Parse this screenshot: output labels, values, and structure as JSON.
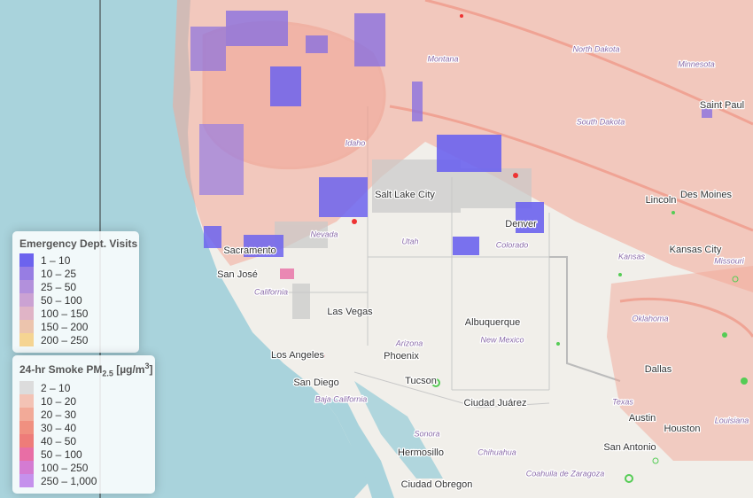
{
  "map": {
    "city_labels": [
      "Saint Paul",
      "Des Moines",
      "Lincoln",
      "Kansas City",
      "Denver",
      "Salt Lake City",
      "Sacramento",
      "San José",
      "Las Vegas",
      "Albuquerque",
      "Phoenix",
      "Los Angeles",
      "San Diego",
      "Tucson",
      "Ciudad Juárez",
      "Dallas",
      "Austin",
      "Houston",
      "Hermosillo",
      "San Antonio",
      "Ciudad Obregon"
    ],
    "region_labels": [
      "Montana",
      "North Dakota",
      "Minnesota",
      "South Dakota",
      "Idaho",
      "Nevada",
      "Utah",
      "Colorado",
      "Kansas",
      "Missouri",
      "California",
      "New Mexico",
      "Oklahoma",
      "Arizona",
      "Texas",
      "Baja California",
      "Louisiana",
      "Sonora",
      "Chihuahua",
      "Coahuila de Zaragoza"
    ]
  },
  "legend_ed": {
    "title": "Emergency Dept. Visits",
    "items": [
      {
        "label": "1 – 10",
        "color": "#6c63ee"
      },
      {
        "label": "10 – 25",
        "color": "#977de3"
      },
      {
        "label": "25 – 50",
        "color": "#b290dc"
      },
      {
        "label": "50 – 100",
        "color": "#cba2d3"
      },
      {
        "label": "100 – 150",
        "color": "#e0b4c6"
      },
      {
        "label": "150 – 200",
        "color": "#ecc4ad"
      },
      {
        "label": "200 – 250",
        "color": "#f5d492"
      }
    ]
  },
  "legend_smoke": {
    "title": "24-hr Smoke PM",
    "title_sub": "2.5",
    "title_unit": " [µg/m",
    "title_sup": "3",
    "title_end": "]",
    "items": [
      {
        "label": "2 – 10",
        "color": "#dcdcdc"
      },
      {
        "label": "10 – 20",
        "color": "#f3c3b5"
      },
      {
        "label": "20 – 30",
        "color": "#f2aa98"
      },
      {
        "label": "30 – 40",
        "color": "#f09080"
      },
      {
        "label": "40 – 50",
        "color": "#ee7c79"
      },
      {
        "label": "50 – 100",
        "color": "#e86ea5"
      },
      {
        "label": "100 – 250",
        "color": "#d47bd2"
      },
      {
        "label": "250 – 1,000",
        "color": "#c591ec"
      }
    ]
  }
}
